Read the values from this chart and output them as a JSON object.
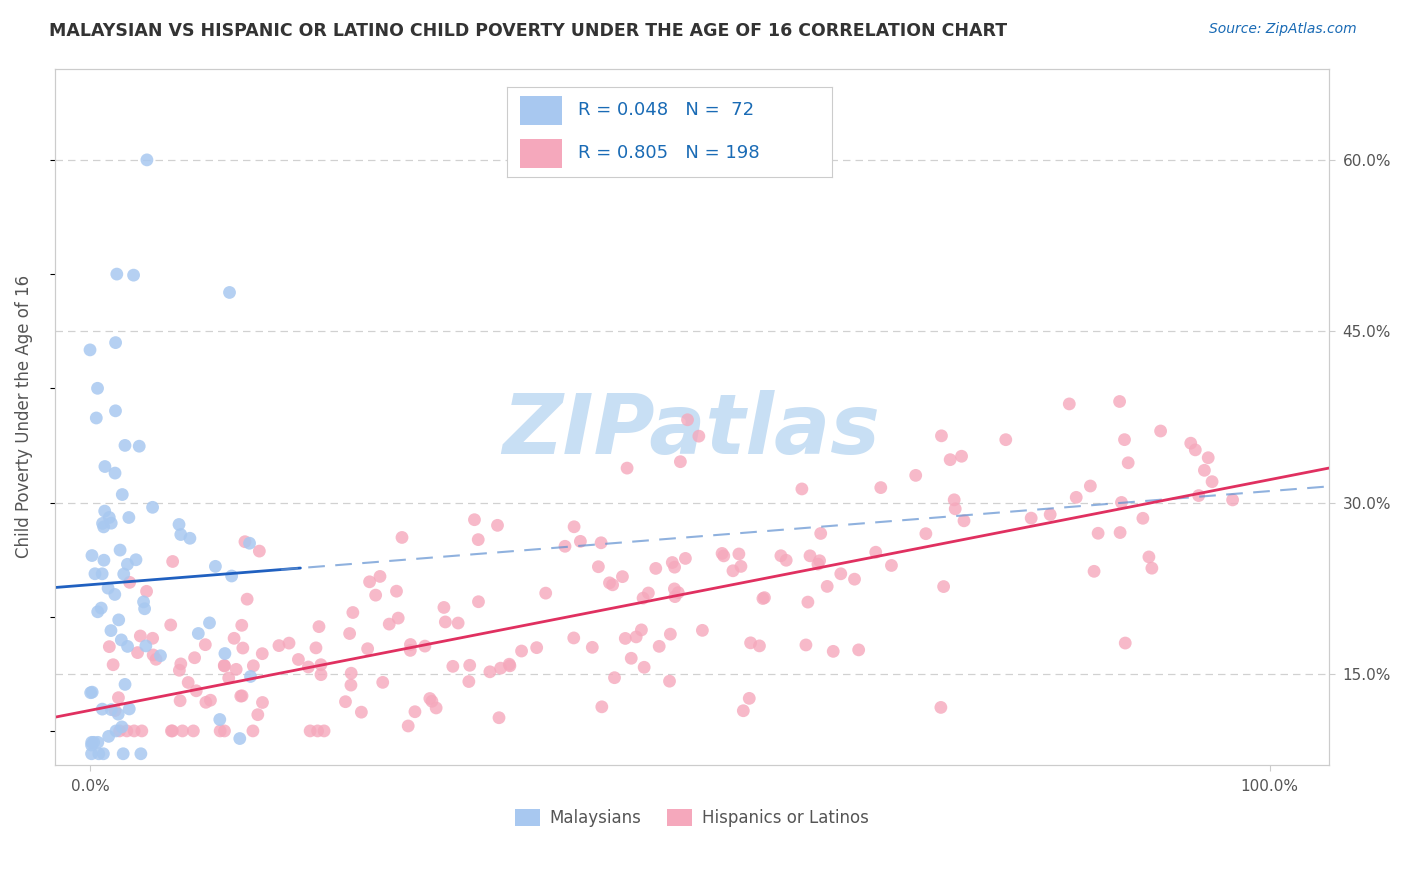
{
  "title": "MALAYSIAN VS HISPANIC OR LATINO CHILD POVERTY UNDER THE AGE OF 16 CORRELATION CHART",
  "source": "Source: ZipAtlas.com",
  "ylabel": "Child Poverty Under the Age of 16",
  "ytick_vals": [
    0.15,
    0.3,
    0.45,
    0.6
  ],
  "ytick_labels": [
    "15.0%",
    "30.0%",
    "45.0%",
    "60.0%"
  ],
  "xlim": [
    -0.03,
    1.05
  ],
  "ylim": [
    0.07,
    0.68
  ],
  "legend_R_blue": "0.048",
  "legend_N_blue": "72",
  "legend_R_pink": "0.805",
  "legend_N_pink": "198",
  "legend_label_blue": "Malaysians",
  "legend_label_pink": "Hispanics or Latinos",
  "blue_scatter_color": "#a8c8f0",
  "pink_scatter_color": "#f5a8bc",
  "blue_line_color": "#2060c0",
  "pink_line_color": "#e03060",
  "blue_dashed_color": "#6090d0",
  "legend_text_color": "#1a6bb5",
  "title_color": "#333333",
  "grid_color": "#cccccc",
  "bg_color": "#ffffff",
  "watermark_color": "#c8dff4",
  "n_malaysian": 72,
  "n_hispanic": 198,
  "blue_line_x0": 0.0,
  "blue_line_y0": 0.228,
  "blue_line_x1": 1.0,
  "blue_line_y1": 0.31,
  "pink_line_x0": 0.0,
  "pink_line_y0": 0.118,
  "pink_line_x1": 1.0,
  "pink_line_y1": 0.32
}
